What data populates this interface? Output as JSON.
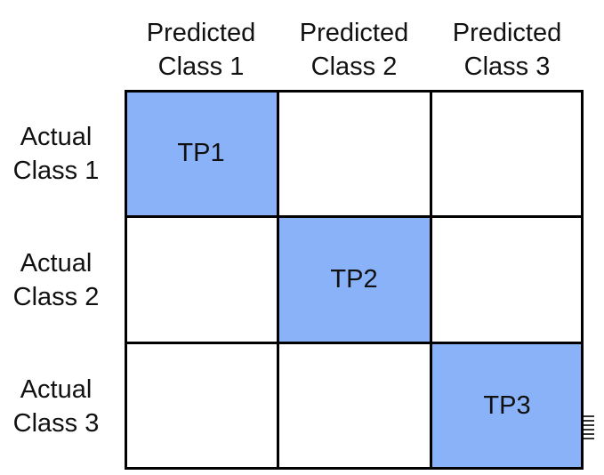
{
  "columns": [
    {
      "line1": "Predicted",
      "line2": "Class 1"
    },
    {
      "line1": "Predicted",
      "line2": "Class 2"
    },
    {
      "line1": "Predicted",
      "line2": "Class 3"
    }
  ],
  "rows": [
    {
      "line1": "Actual",
      "line2": "Class 1"
    },
    {
      "line1": "Actual",
      "line2": "Class 2"
    },
    {
      "line1": "Actual",
      "line2": "Class 3"
    }
  ],
  "cells": [
    [
      "TP1",
      "",
      ""
    ],
    [
      "",
      "TP2",
      ""
    ],
    [
      "",
      "",
      "TP3"
    ]
  ],
  "colors": {
    "highlight": "#8ab2f8",
    "grid": "#000000"
  }
}
